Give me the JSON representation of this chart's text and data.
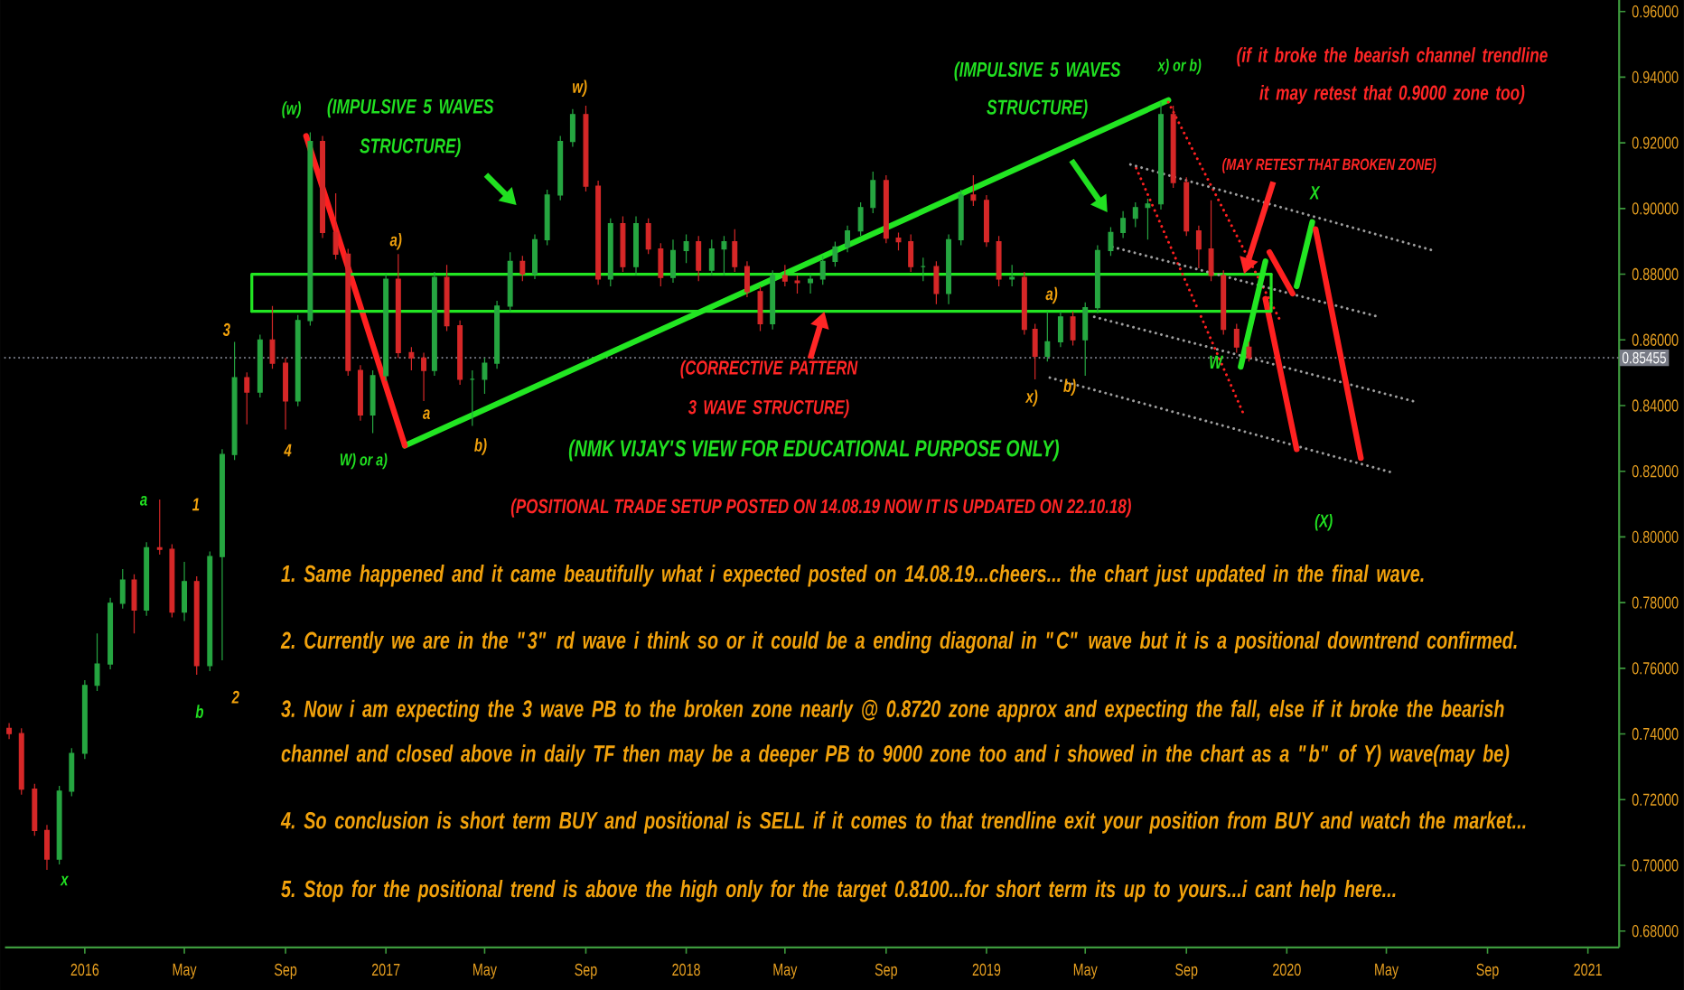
{
  "chart_data": {
    "type": "candlestick",
    "x": [
      "2015-10-01",
      "2015-10-16",
      "2015-11-01",
      "2015-11-16",
      "2015-12-01",
      "2015-12-16",
      "2016-01-01",
      "2016-01-16",
      "2016-02-01",
      "2016-02-16",
      "2016-03-01",
      "2016-03-16",
      "2016-04-01",
      "2016-04-16",
      "2016-05-01",
      "2016-05-16",
      "2016-06-01",
      "2016-06-16",
      "2016-07-01",
      "2016-07-16",
      "2016-08-01",
      "2016-08-16",
      "2016-09-01",
      "2016-09-16",
      "2016-10-01",
      "2016-10-16",
      "2016-11-01",
      "2016-11-16",
      "2016-12-01",
      "2016-12-16",
      "2017-01-01",
      "2017-01-16",
      "2017-02-01",
      "2017-02-16",
      "2017-03-01",
      "2017-03-16",
      "2017-04-01",
      "2017-04-16",
      "2017-05-01",
      "2017-05-16",
      "2017-06-01",
      "2017-06-16",
      "2017-07-01",
      "2017-07-16",
      "2017-08-01",
      "2017-08-16",
      "2017-09-01",
      "2017-09-16",
      "2017-10-01",
      "2017-10-16",
      "2017-11-01",
      "2017-11-16",
      "2017-12-01",
      "2017-12-16",
      "2018-01-01",
      "2018-01-16",
      "2018-02-01",
      "2018-02-16",
      "2018-03-01",
      "2018-03-16",
      "2018-04-01",
      "2018-04-16",
      "2018-05-01",
      "2018-05-16",
      "2018-06-01",
      "2018-06-16",
      "2018-07-01",
      "2018-07-16",
      "2018-08-01",
      "2018-08-16",
      "2018-09-01",
      "2018-09-16",
      "2018-10-01",
      "2018-10-16",
      "2018-11-01",
      "2018-11-16",
      "2018-12-01",
      "2018-12-16",
      "2019-01-01",
      "2019-01-16",
      "2019-02-01",
      "2019-02-16",
      "2019-03-01",
      "2019-03-16",
      "2019-04-01",
      "2019-04-16",
      "2019-05-01",
      "2019-05-16",
      "2019-06-01",
      "2019-06-16",
      "2019-07-01",
      "2019-07-16",
      "2019-08-01",
      "2019-08-16",
      "2019-09-01",
      "2019-09-16",
      "2019-10-01",
      "2019-10-16",
      "2019-11-01",
      "2019-11-16"
    ],
    "ohlc": [
      [
        0.7417,
        0.7433,
        0.7384,
        0.7401
      ],
      [
        0.7401,
        0.7417,
        0.7215,
        0.7232
      ],
      [
        0.7232,
        0.7248,
        0.709,
        0.7106
      ],
      [
        0.7106,
        0.7123,
        0.6986,
        0.7019
      ],
      [
        0.7019,
        0.7242,
        0.7003,
        0.7226
      ],
      [
        0.7226,
        0.7357,
        0.721,
        0.7341
      ],
      [
        0.7341,
        0.7564,
        0.7324,
        0.7548
      ],
      [
        0.7548,
        0.7706,
        0.7531,
        0.7613
      ],
      [
        0.7613,
        0.7815,
        0.7597,
        0.7798
      ],
      [
        0.7798,
        0.7902,
        0.7782,
        0.7869
      ],
      [
        0.7869,
        0.7886,
        0.7706,
        0.7777
      ],
      [
        0.7777,
        0.7984,
        0.776,
        0.7967
      ],
      [
        0.7967,
        0.8114,
        0.7946,
        0.7962
      ],
      [
        0.7962,
        0.7978,
        0.7755,
        0.7771
      ],
      [
        0.7771,
        0.7924,
        0.7744,
        0.7864
      ],
      [
        0.7864,
        0.788,
        0.758,
        0.7608
      ],
      [
        0.7608,
        0.7956,
        0.7591,
        0.794
      ],
      [
        0.794,
        0.8267,
        0.7624,
        0.8251
      ],
      [
        0.8251,
        0.8594,
        0.8234,
        0.8485
      ],
      [
        0.8485,
        0.8501,
        0.8343,
        0.8441
      ],
      [
        0.8441,
        0.8616,
        0.8425,
        0.86
      ],
      [
        0.86,
        0.8703,
        0.8512,
        0.8529
      ],
      [
        0.8529,
        0.8545,
        0.8327,
        0.8414
      ],
      [
        0.8414,
        0.8676,
        0.8398,
        0.8659
      ],
      [
        0.8659,
        0.9232,
        0.8643,
        0.9204
      ],
      [
        0.9204,
        0.9221,
        0.891,
        0.8927
      ],
      [
        0.8927,
        0.9046,
        0.8845,
        0.8861
      ],
      [
        0.8861,
        0.8877,
        0.8491,
        0.8507
      ],
      [
        0.8507,
        0.8523,
        0.8354,
        0.8371
      ],
      [
        0.8371,
        0.8507,
        0.8316,
        0.8491
      ],
      [
        0.8491,
        0.8801,
        0.8474,
        0.8785
      ],
      [
        0.8785,
        0.8861,
        0.8545,
        0.8561
      ],
      [
        0.8561,
        0.8578,
        0.8507,
        0.8545
      ],
      [
        0.8545,
        0.8561,
        0.8414,
        0.8507
      ],
      [
        0.8507,
        0.8807,
        0.8491,
        0.879
      ],
      [
        0.879,
        0.8828,
        0.8627,
        0.8643
      ],
      [
        0.8643,
        0.8659,
        0.8463,
        0.848
      ],
      [
        0.848,
        0.8507,
        0.8338,
        0.848
      ],
      [
        0.848,
        0.8545,
        0.8436,
        0.8529
      ],
      [
        0.8529,
        0.8719,
        0.8512,
        0.8703
      ],
      [
        0.8703,
        0.8867,
        0.8687,
        0.8839
      ],
      [
        0.8839,
        0.8856,
        0.8779,
        0.8801
      ],
      [
        0.8801,
        0.8921,
        0.8785,
        0.8905
      ],
      [
        0.8905,
        0.9057,
        0.8888,
        0.9041
      ],
      [
        0.9041,
        0.9221,
        0.9025,
        0.9204
      ],
      [
        0.9204,
        0.9303,
        0.9188,
        0.9286
      ],
      [
        0.9286,
        0.9313,
        0.9052,
        0.9068
      ],
      [
        0.9068,
        0.9085,
        0.8768,
        0.8785
      ],
      [
        0.8785,
        0.897,
        0.8763,
        0.8954
      ],
      [
        0.8954,
        0.8976,
        0.8807,
        0.8823
      ],
      [
        0.8823,
        0.8976,
        0.8796,
        0.8954
      ],
      [
        0.8954,
        0.897,
        0.8861,
        0.8877
      ],
      [
        0.8877,
        0.8894,
        0.8763,
        0.879
      ],
      [
        0.879,
        0.8905,
        0.8774,
        0.8872
      ],
      [
        0.8872,
        0.8921,
        0.8834,
        0.8899
      ],
      [
        0.8899,
        0.8916,
        0.8779,
        0.8812
      ],
      [
        0.8812,
        0.8905,
        0.8796,
        0.8877
      ],
      [
        0.8877,
        0.8916,
        0.8796,
        0.8899
      ],
      [
        0.8899,
        0.8937,
        0.8807,
        0.8823
      ],
      [
        0.8823,
        0.8839,
        0.873,
        0.8747
      ],
      [
        0.8747,
        0.8763,
        0.8627,
        0.8649
      ],
      [
        0.8649,
        0.8812,
        0.8632,
        0.8796
      ],
      [
        0.8796,
        0.8828,
        0.8763,
        0.8779
      ],
      [
        0.8779,
        0.8796,
        0.8741,
        0.8774
      ],
      [
        0.8774,
        0.8801,
        0.8741,
        0.8785
      ],
      [
        0.8785,
        0.8856,
        0.8768,
        0.8839
      ],
      [
        0.8839,
        0.8899,
        0.8823,
        0.8883
      ],
      [
        0.8883,
        0.8948,
        0.8867,
        0.8932
      ],
      [
        0.8932,
        0.9019,
        0.8916,
        0.9003
      ],
      [
        0.9003,
        0.9112,
        0.8986,
        0.9085
      ],
      [
        0.9085,
        0.9101,
        0.8894,
        0.891
      ],
      [
        0.891,
        0.8927,
        0.8872,
        0.8899
      ],
      [
        0.8899,
        0.8921,
        0.8807,
        0.8823
      ],
      [
        0.8823,
        0.885,
        0.8779,
        0.8823
      ],
      [
        0.8823,
        0.8839,
        0.8709,
        0.8741
      ],
      [
        0.8741,
        0.8921,
        0.8709,
        0.8905
      ],
      [
        0.8905,
        0.9057,
        0.8888,
        0.9041
      ],
      [
        0.9041,
        0.9101,
        0.9008,
        0.9025
      ],
      [
        0.9025,
        0.9041,
        0.8883,
        0.8899
      ],
      [
        0.8899,
        0.8916,
        0.8763,
        0.8785
      ],
      [
        0.8785,
        0.8828,
        0.8763,
        0.879
      ],
      [
        0.879,
        0.8807,
        0.8616,
        0.8632
      ],
      [
        0.8632,
        0.8649,
        0.848,
        0.855
      ],
      [
        0.855,
        0.8687,
        0.8534,
        0.8594
      ],
      [
        0.8594,
        0.8687,
        0.8578,
        0.867
      ],
      [
        0.867,
        0.8687,
        0.8583,
        0.86
      ],
      [
        0.86,
        0.8714,
        0.8491,
        0.8698
      ],
      [
        0.8698,
        0.8888,
        0.8681,
        0.8872
      ],
      [
        0.8872,
        0.8943,
        0.8856,
        0.8927
      ],
      [
        0.8927,
        0.8992,
        0.891,
        0.897
      ],
      [
        0.897,
        0.9019,
        0.8943,
        0.9003
      ],
      [
        0.9003,
        0.903,
        0.8905,
        0.9014
      ],
      [
        0.9014,
        0.9324,
        0.8997,
        0.9286
      ],
      [
        0.9286,
        0.9313,
        0.9063,
        0.9079
      ],
      [
        0.9079,
        0.9095,
        0.8916,
        0.8932
      ],
      [
        0.8932,
        0.8948,
        0.8818,
        0.8877
      ],
      [
        0.8877,
        0.9025,
        0.8779,
        0.8796
      ],
      [
        0.8796,
        0.8812,
        0.8616,
        0.8632
      ],
      [
        0.8632,
        0.8649,
        0.8561,
        0.8578
      ],
      [
        0.8578,
        0.8594,
        0.8534,
        0.85455
      ]
    ],
    "colors": [
      "#d62828",
      "#d62828",
      "#d62828",
      "#d62828",
      "#26a641",
      "#26a641",
      "#26a641",
      "#26a641",
      "#26a641",
      "#26a641",
      "#d62828",
      "#26a641",
      "#d62828",
      "#d62828",
      "#26a641",
      "#d62828",
      "#26a641",
      "#26a641",
      "#26a641",
      "#d62828",
      "#26a641",
      "#d62828",
      "#d62828",
      "#26a641",
      "#26a641",
      "#d62828",
      "#d62828",
      "#d62828",
      "#d62828",
      "#26a641",
      "#26a641",
      "#d62828",
      "#d62828",
      "#d62828",
      "#26a641",
      "#d62828",
      "#d62828",
      "#26a641",
      "#26a641",
      "#26a641",
      "#26a641",
      "#d62828",
      "#26a641",
      "#26a641",
      "#26a641",
      "#26a641",
      "#d62828",
      "#d62828",
      "#26a641",
      "#d62828",
      "#26a641",
      "#d62828",
      "#d62828",
      "#26a641",
      "#26a641",
      "#d62828",
      "#26a641",
      "#26a641",
      "#d62828",
      "#d62828",
      "#d62828",
      "#26a641",
      "#d62828",
      "#d62828",
      "#26a641",
      "#26a641",
      "#26a641",
      "#26a641",
      "#26a641",
      "#26a641",
      "#d62828",
      "#d62828",
      "#d62828",
      "#26a641",
      "#d62828",
      "#26a641",
      "#26a641",
      "#d62828",
      "#d62828",
      "#d62828",
      "#26a641",
      "#d62828",
      "#d62828",
      "#26a641",
      "#26a641",
      "#d62828",
      "#26a641",
      "#26a641",
      "#26a641",
      "#26a641",
      "#26a641",
      "#26a641",
      "#26a641",
      "#d62828",
      "#d62828",
      "#d62828",
      "#d62828",
      "#d62828",
      "#d62828",
      "#d62828"
    ],
    "series": [
      {
        "type": "line",
        "x": [
          "2017-01-24",
          "2019-08-10"
        ],
        "values": [
          0.8278,
          0.933
        ],
        "color": "#22e622",
        "line_style": "solid"
      },
      {
        "type": "line",
        "x": [
          "2016-09-26",
          "2017-01-24"
        ],
        "values": [
          0.9221,
          0.8278
        ],
        "color": "#ff2020",
        "line_style": "solid"
      },
      {
        "type": "line",
        "x": [
          "2016-07-22",
          "2016-07-22",
          "2019-12-13"
        ],
        "values": [
          0.8687,
          0.88,
          0.88
        ],
        "color": "#22e622",
        "line_style": "solid"
      },
      {
        "type": "line",
        "x": [
          "2019-08-10",
          "2019-12-24"
        ],
        "values": [
          0.9324,
          0.8659
        ],
        "color": "#ff2020",
        "line_style": "dotted"
      },
      {
        "type": "line",
        "x": [
          "2019-07-02",
          "2019-11-10"
        ],
        "values": [
          0.9123,
          0.8371
        ],
        "color": "#ff2020",
        "line_style": "dotted"
      },
      {
        "type": "line",
        "x": [
          "2019-06-25",
          "2020-06-27"
        ],
        "values": [
          0.9134,
          0.8872
        ],
        "color": "#9e9e9e",
        "line_style": "dotted"
      },
      {
        "type": "line",
        "x": [
          "2019-06-03",
          "2020-04-22"
        ],
        "values": [
          0.8883,
          0.867
        ],
        "color": "#9e9e9e",
        "line_style": "dotted"
      },
      {
        "type": "line",
        "x": [
          "2019-05-12",
          "2020-06-09"
        ],
        "values": [
          0.867,
          0.8409
        ],
        "color": "#9e9e9e",
        "line_style": "dotted"
      },
      {
        "type": "line",
        "x": [
          "2019-03-19",
          "2020-05-08"
        ],
        "values": [
          0.8485,
          0.8196
        ],
        "color": "#9e9e9e",
        "line_style": "dotted"
      },
      {
        "type": "line",
        "x": [
          "2019-11-06",
          "2019-12-06"
        ],
        "values": [
          0.8518,
          0.8839
        ],
        "color": "#22e622",
        "line_style": "solid"
      },
      {
        "type": "line",
        "x": [
          "2019-12-11",
          "2020-01-08"
        ],
        "values": [
          0.8867,
          0.8741
        ],
        "color": "#ff2020",
        "line_style": "solid"
      },
      {
        "type": "line",
        "x": [
          "2020-01-13",
          "2020-02-01"
        ],
        "values": [
          0.8763,
          0.8959
        ],
        "color": "#22e622",
        "line_style": "solid"
      },
      {
        "type": "line",
        "x": [
          "2020-02-05",
          "2020-03-31"
        ],
        "values": [
          0.8937,
          0.824
        ],
        "color": "#ff2020",
        "line_style": "solid"
      },
      {
        "type": "line",
        "x": [
          "2019-12-06",
          "2020-01-13"
        ],
        "values": [
          0.8725,
          0.8267
        ],
        "color": "#ff2020",
        "line_style": "solid"
      },
      {
        "type": "line",
        "x": [
          "2016-07-22",
          "2019-12-13",
          "2019-12-13"
        ],
        "values": [
          0.8687,
          0.8687,
          0.88
        ],
        "color": "#22e622",
        "line_style": "solid"
      }
    ],
    "xlim": [
      "2015-09-26",
      "2021-02-08"
    ],
    "xticks": [
      {
        "value": "2016-01-01",
        "label": "2016"
      },
      {
        "value": "2016-05-01",
        "label": "May"
      },
      {
        "value": "2016-09-01",
        "label": "Sep"
      },
      {
        "value": "2017-01-01",
        "label": "2017"
      },
      {
        "value": "2017-05-01",
        "label": "May"
      },
      {
        "value": "2017-09-01",
        "label": "Sep"
      },
      {
        "value": "2018-01-01",
        "label": "2018"
      },
      {
        "value": "2018-05-01",
        "label": "May"
      },
      {
        "value": "2018-09-01",
        "label": "Sep"
      },
      {
        "value": "2019-01-01",
        "label": "2019"
      },
      {
        "value": "2019-05-01",
        "label": "May"
      },
      {
        "value": "2019-09-01",
        "label": "Sep"
      },
      {
        "value": "2020-01-01",
        "label": "2020"
      },
      {
        "value": "2020-05-01",
        "label": "May"
      },
      {
        "value": "2020-09-01",
        "label": "Sep"
      },
      {
        "value": "2021-01-01",
        "label": "2021"
      }
    ],
    "ylim": [
      0.675,
      0.9635
    ],
    "yticks": [
      {
        "value": 0.68,
        "label": "0.68000"
      },
      {
        "value": 0.7,
        "label": "0.70000"
      },
      {
        "value": 0.72,
        "label": "0.72000"
      },
      {
        "value": 0.74,
        "label": "0.74000"
      },
      {
        "value": 0.76,
        "label": "0.76000"
      },
      {
        "value": 0.78,
        "label": "0.78000"
      },
      {
        "value": 0.8,
        "label": "0.80000"
      },
      {
        "value": 0.82,
        "label": "0.82000"
      },
      {
        "value": 0.84,
        "label": "0.84000"
      },
      {
        "value": 0.86,
        "label": "0.86000"
      },
      {
        "value": 0.88,
        "label": "0.88000"
      },
      {
        "value": 0.9,
        "label": "0.90000"
      },
      {
        "value": 0.92,
        "label": "0.92000"
      },
      {
        "value": 0.94,
        "label": "0.94000"
      },
      {
        "value": 0.96,
        "label": "0.96000"
      }
    ],
    "ref_lines": [
      {
        "axis": "y",
        "value": 0.85455,
        "label": "0.85455",
        "color": "#787b86",
        "line_style": "dotted"
      }
    ],
    "annotations": [
      "(w)",
      "w)",
      "a)",
      "a",
      "b)",
      "3",
      "4",
      "W) or a)",
      "a",
      "1",
      "b",
      "2",
      "x",
      "a)",
      "x)",
      "b)",
      "x) or b)",
      "W",
      "X",
      "(X)",
      "(IMPULSIVE 5 WAVES STRUCTURE)",
      "(IMPULSIVE 5 WAVES STRUCTURE)",
      {
        "text": "(CORRECTIVE PATTERN 3 WAVE STRUCTURE)",
        "x": "2018-06-18",
        "y": 0.8687
      },
      "(NMK VIJAY'S VIEW FOR EDUCATIONAL PURPOSE ONLY)",
      "(POSITIONAL TRADE SETUP POSTED ON 14.08.19 NOW IT IS UPDATED ON 22.10.18)",
      "(if it broke the bearish channel trendline it may retest that 0.9000 zone too)",
      {
        "text": "(MAY RETEST THAT BROKEN ZONE)",
        "x": "2019-11-10",
        "y": 0.88
      },
      "1. Same happened and it came beautifully what i expected posted on 14.08.19...cheers... the chart just updated in the final wave.",
      "2. Currently we are in the \"3\" rd wave i think so or it could be a ending diagonal in \"C\" wave but it is a positional downtrend confirmed.",
      "3. Now i am expecting the 3 wave PB to the broken zone nearly @ 0.8720 zone approx and expecting the fall, else if it broke the bearish channel and closed above in daily TF then may be a deeper PB to 9000 zone too and i showed in the chart as a \"b\" of Y) wave(may be)",
      "4. So conclusion is short term BUY and positional is SELL if it comes to that trendline exit your position from BUY and watch the market...",
      "5. Stop for the positional trend is above the high only for the target 0.8100...for short term its up to yours...i cant help here..."
    ]
  }
}
